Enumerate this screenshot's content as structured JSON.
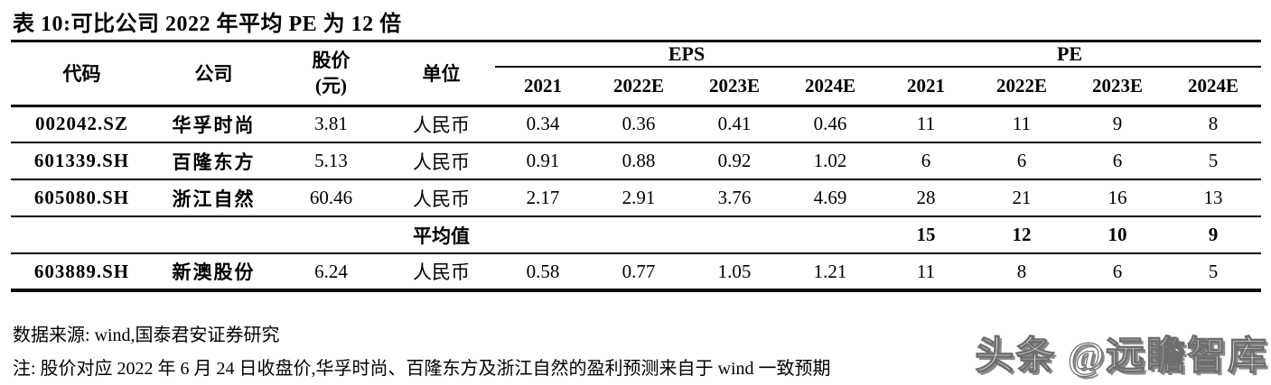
{
  "title": "表 10:可比公司 2022 年平均 PE 为 12 倍",
  "table": {
    "headers": {
      "code": "代码",
      "company": "公司",
      "price_line1": "股价",
      "price_line2": "(元)",
      "unit": "单位",
      "eps_group": "EPS",
      "pe_group": "PE",
      "eps_years": [
        "2021",
        "2022E",
        "2023E",
        "2024E"
      ],
      "pe_years": [
        "2021",
        "2022E",
        "2023E",
        "2024E"
      ]
    },
    "rows": [
      {
        "code": "002042.SZ",
        "company": "华孚时尚",
        "price": "3.81",
        "unit": "人民币",
        "eps": [
          "0.34",
          "0.36",
          "0.41",
          "0.46"
        ],
        "pe": [
          "11",
          "11",
          "9",
          "8"
        ]
      },
      {
        "code": "601339.SH",
        "company": "百隆东方",
        "price": "5.13",
        "unit": "人民币",
        "eps": [
          "0.91",
          "0.88",
          "0.92",
          "1.02"
        ],
        "pe": [
          "6",
          "6",
          "6",
          "5"
        ]
      },
      {
        "code": "605080.SH",
        "company": "浙江自然",
        "price": "60.46",
        "unit": "人民币",
        "eps": [
          "2.17",
          "2.91",
          "3.76",
          "4.69"
        ],
        "pe": [
          "28",
          "21",
          "16",
          "13"
        ]
      }
    ],
    "average_row": {
      "label": "平均值",
      "pe": [
        "15",
        "12",
        "10",
        "9"
      ]
    },
    "last_row": {
      "code": "603889.SH",
      "company": "新澳股份",
      "price": "6.24",
      "unit": "人民币",
      "eps": [
        "0.58",
        "0.77",
        "1.05",
        "1.21"
      ],
      "pe": [
        "11",
        "8",
        "6",
        "5"
      ]
    }
  },
  "footer": {
    "source": "数据来源: wind,国泰君安证券研究",
    "note": "注: 股价对应 2022 年 6 月 24 日收盘价,华孚时尚、百隆东方及浙江自然的盈利预测来自于 wind 一致预期"
  },
  "watermark": {
    "text": "头条 @远瞻智库"
  }
}
